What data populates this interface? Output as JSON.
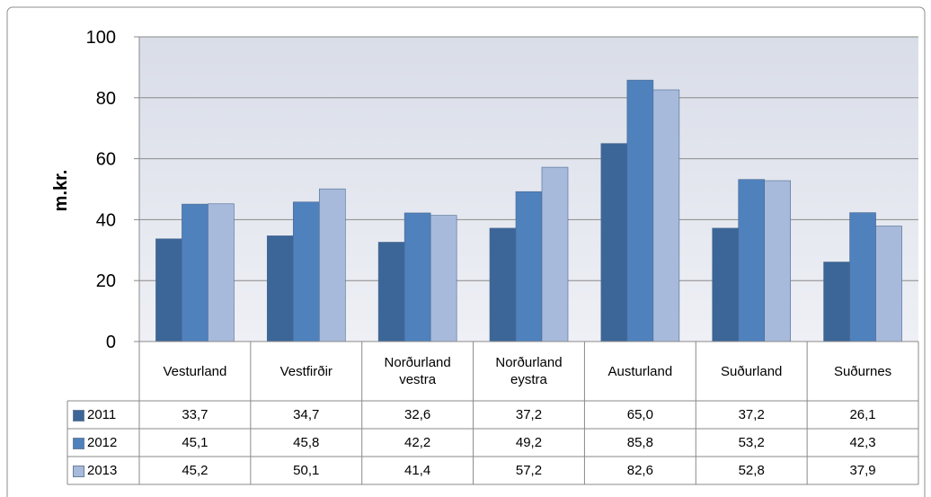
{
  "chart_data": {
    "type": "bar",
    "y_label": "m.kr.",
    "categories": [
      "Vesturland",
      "Vestfirðir",
      "Norðurland vestra",
      "Norðurland eystra",
      "Austurland",
      "Suðurland",
      "Suðurnes"
    ],
    "series": [
      {
        "name": "2011",
        "color": "#3c6697",
        "values": [
          33.7,
          34.7,
          32.6,
          37.2,
          65.0,
          37.2,
          26.1
        ],
        "value_labels": [
          "33,7",
          "34,7",
          "32,6",
          "37,2",
          "65,0",
          "37,2",
          "26,1"
        ]
      },
      {
        "name": "2012",
        "color": "#4f81bd",
        "values": [
          45.1,
          45.8,
          42.2,
          49.2,
          85.8,
          53.2,
          42.3
        ],
        "value_labels": [
          "45,1",
          "45,8",
          "42,2",
          "49,2",
          "85,8",
          "53,2",
          "42,3"
        ]
      },
      {
        "name": "2013",
        "color": "#a8badb",
        "values": [
          45.2,
          50.1,
          41.4,
          57.2,
          82.6,
          52.8,
          37.9
        ],
        "value_labels": [
          "45,2",
          "50,1",
          "41,4",
          "57,2",
          "82,6",
          "52,8",
          "37,9"
        ]
      }
    ],
    "ylim": [
      0,
      100
    ],
    "yticks": [
      0,
      20,
      40,
      60,
      80,
      100
    ],
    "grid": true
  }
}
